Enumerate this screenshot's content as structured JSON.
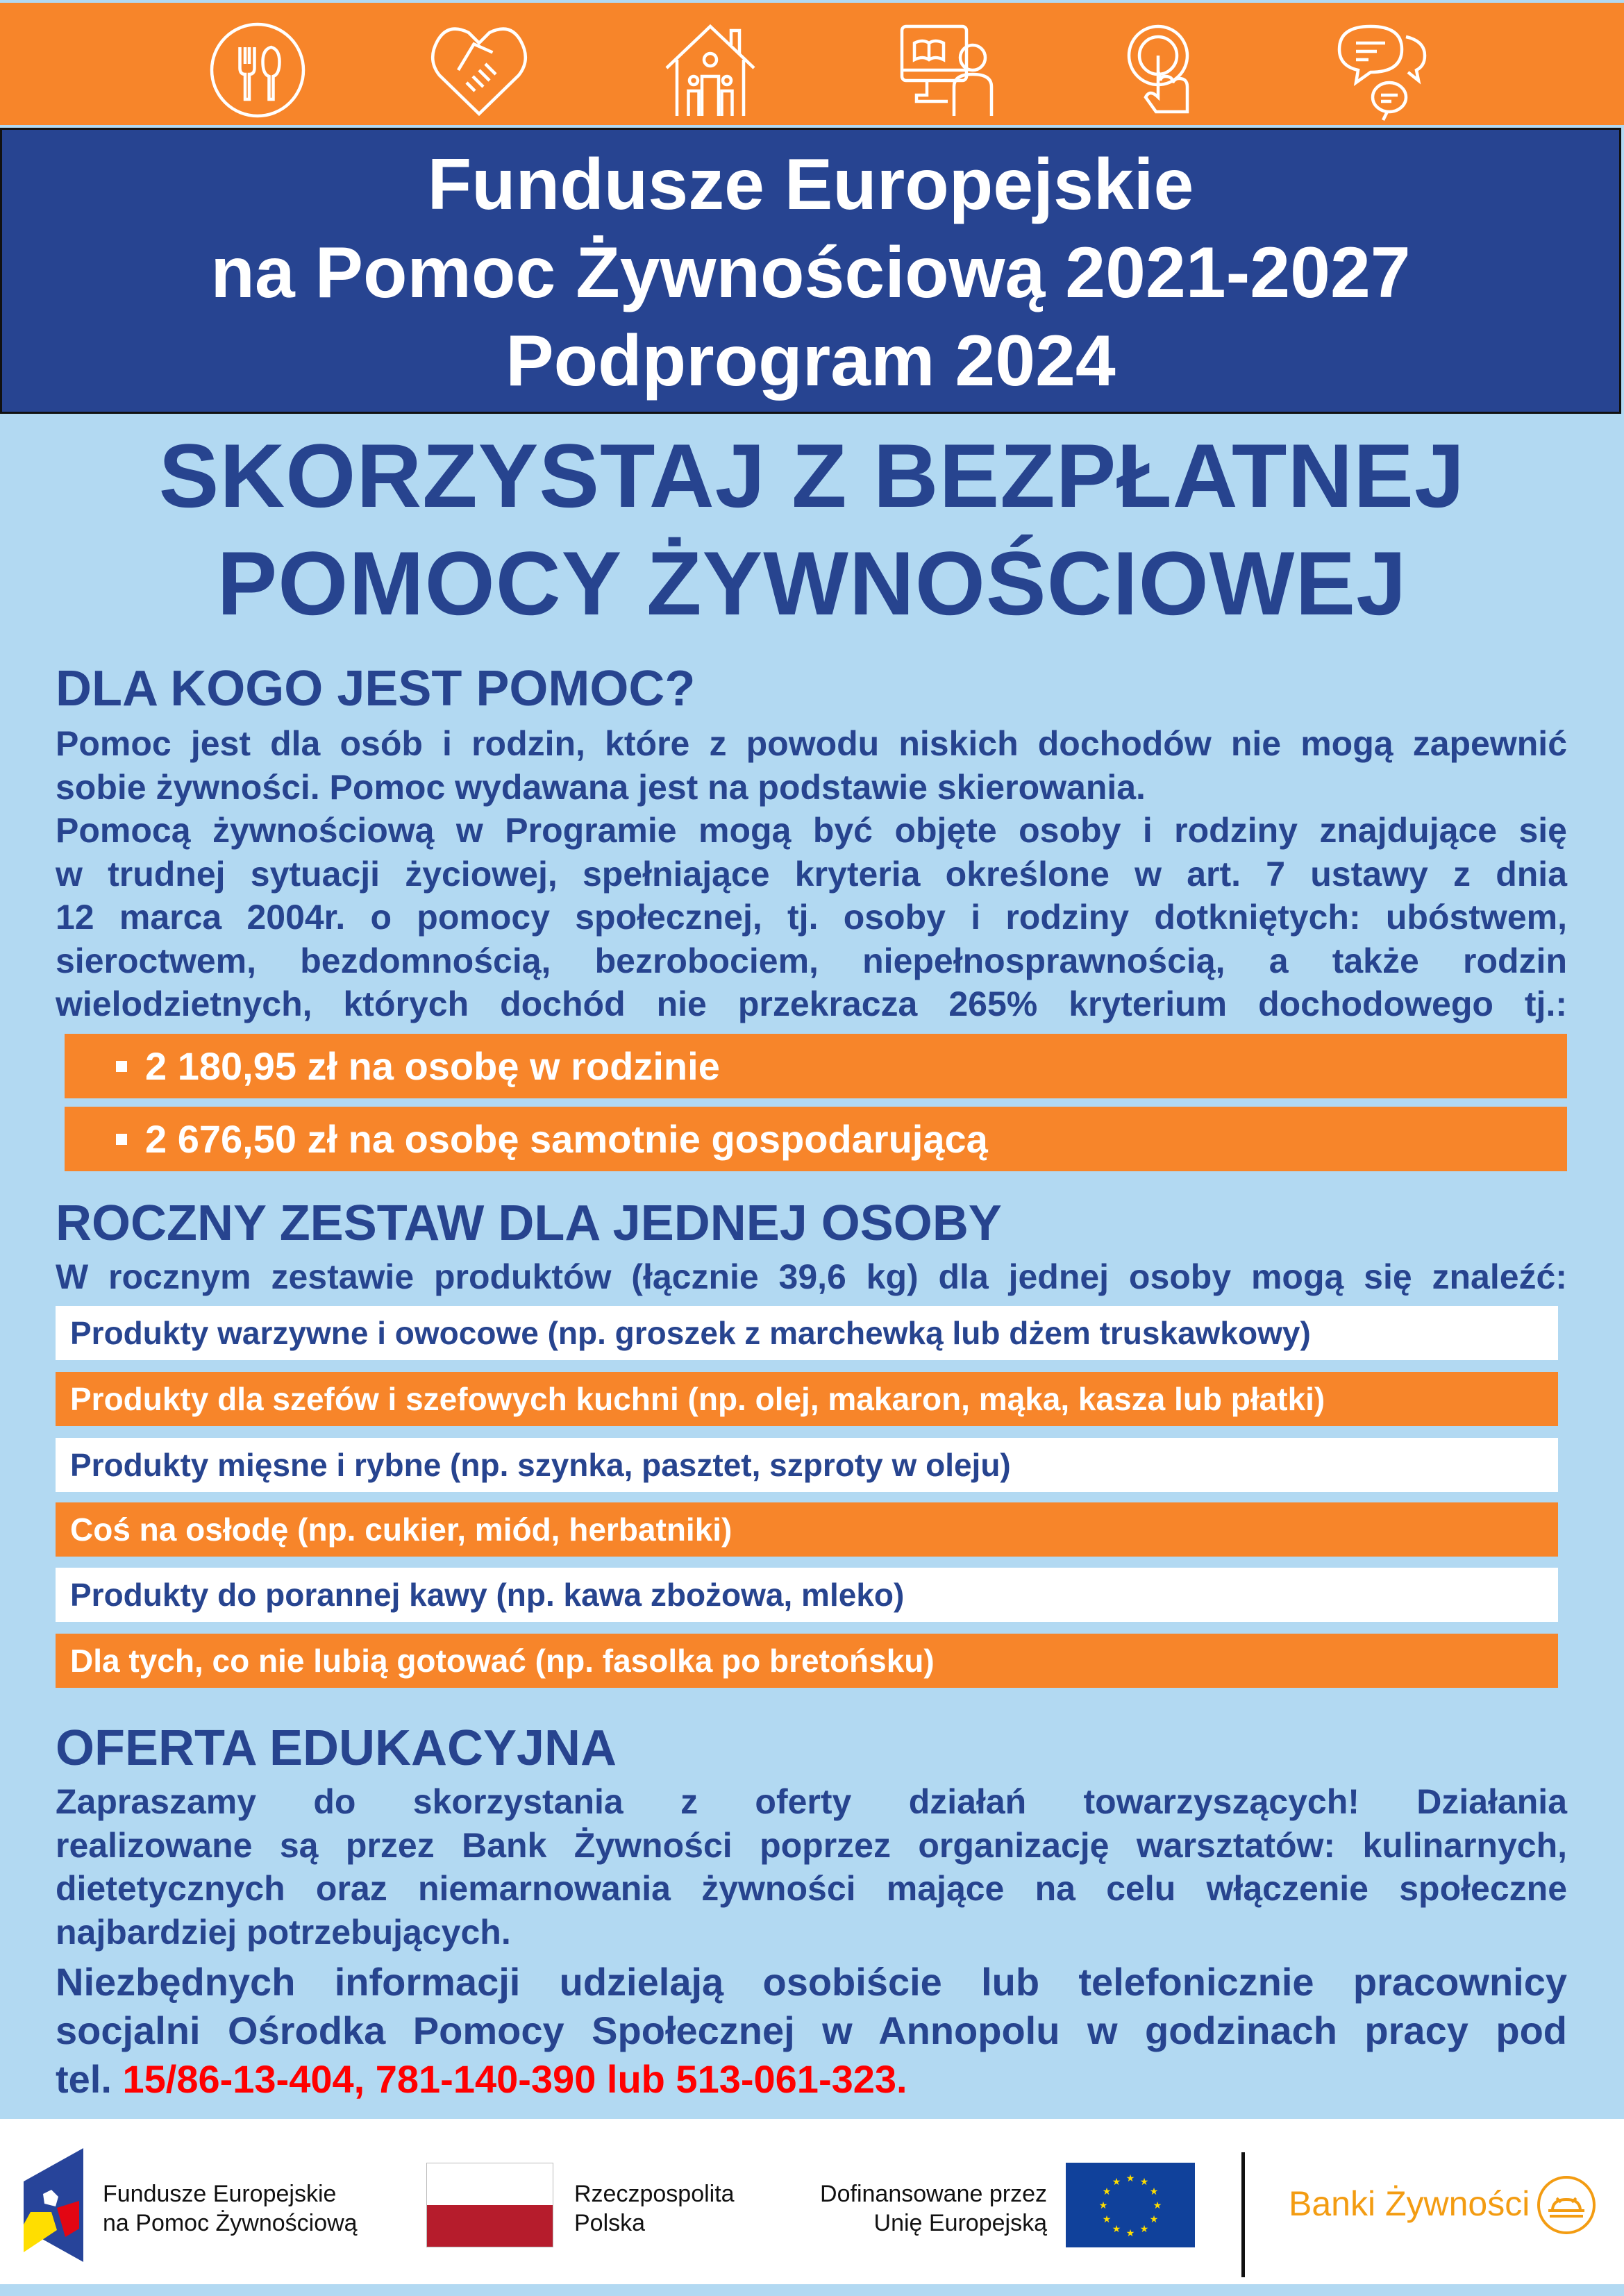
{
  "top_icons": [
    "plate-cutlery-icon",
    "heart-handshake-icon",
    "house-family-icon",
    "computer-book-person-icon",
    "touch-hand-icon",
    "chat-bubbles-icon"
  ],
  "colors": {
    "orange": "#f7852a",
    "dark_blue": "#274491",
    "light_blue": "#b2d9f2",
    "red": "#ff0000",
    "banki_orange": "#f39c12"
  },
  "title": {
    "line1": "Fundusze Europejskie",
    "line2": "na Pomoc Żywnościową 2021-2027",
    "line3": "Podprogram 2024"
  },
  "headline": {
    "line1": "SKORZYSTAJ Z BEZPŁATNEJ",
    "line2": "POMOCY ŻYWNOŚCIOWEJ"
  },
  "who": {
    "heading": "DLA KOGO JEST POMOC?",
    "lines": [
      "Pomoc jest dla osób i rodzin, które z powodu niskich dochodów nie mogą zapewnić",
      "sobie żywności. Pomoc wydawana jest na podstawie skierowania.",
      "Pomocą żywnościową w Programie mogą być objęte osoby i rodziny znajdujące się",
      "w trudnej sytuacji życiowej, spełniające kryteria określone w art. 7 ustawy z dnia",
      "12 marca 2004r. o pomocy społecznej, tj. osoby i rodziny dotkniętych: ubóstwem,",
      "sieroctwem, bezdomnością, bezrobociem, niepełnosprawnością, a także rodzin",
      "wielodzietnych, których dochód nie przekracza 265% kryterium dochodowego tj.:"
    ],
    "criteria": [
      "2 180,95 zł na osobę w rodzinie",
      "2 676,50 zł na osobę samotnie gospodarującą"
    ]
  },
  "set": {
    "heading": "ROCZNY ZESTAW DLA JEDNEJ OSOBY",
    "intro": "W rocznym zestawie produktów (łącznie 39,6 kg) dla jednej osoby mogą się znaleźć:",
    "products": [
      "Produkty warzywne i owocowe (np. groszek z marchewką lub dżem truskawkowy)",
      "Produkty dla szefów i szefowych kuchni (np. olej, makaron, mąka, kasza lub płatki)",
      "Produkty mięsne i rybne (np. szynka, pasztet, szproty w oleju)",
      "Coś na osłodę (np. cukier, miód, herbatniki)",
      "Produkty do porannej kawy (np. kawa zbożowa, mleko)",
      "Dla tych, co nie lubią gotować (np. fasolka po bretońsku)"
    ]
  },
  "edu": {
    "heading": "OFERTA EDUKACYJNA",
    "lines": [
      "Zapraszamy do skorzystania z oferty działań towarzyszących! Działania",
      "realizowane są przez Bank Żywności poprzez organizację warsztatów: kulinarnych,",
      "dietetycznych oraz niemarnowania żywności mające na celu włączenie społeczne",
      "najbardziej potrzebujących."
    ],
    "info_lines": [
      "Niezbędnych informacji udzielają osobiście lub telefonicznie pracownicy",
      "socjalni Ośrodka Pomocy Społecznej w Annopolu w godzinach pracy pod"
    ],
    "tel_prefix": "tel. ",
    "phones": "15/86-13-404, 781-140-390 lub 513-061-323."
  },
  "footer": {
    "fe_line1": "Fundusze Europejskie",
    "fe_line2": "na Pomoc Żywnościową",
    "rp_line1": "Rzeczpospolita",
    "rp_line2": "Polska",
    "eu_line1": "Dofinansowane przez",
    "eu_line2": "Unię Europejską",
    "banki": "Banki Żywności"
  }
}
